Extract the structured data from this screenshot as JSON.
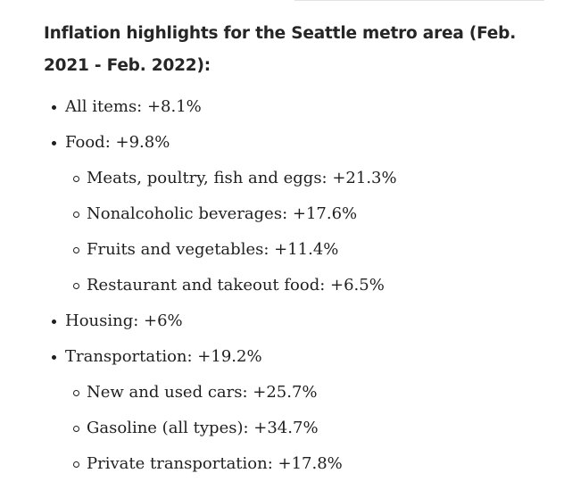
{
  "heading": "Inflation highlights for the Seattle metro area (Feb. 2021 - Feb. 2022):",
  "items": [
    {
      "level": 1,
      "text": "All items: +8.1%"
    },
    {
      "level": 1,
      "text": "Food: +9.8%"
    },
    {
      "level": 2,
      "text": "Meats, poultry, fish and eggs: +21.3%"
    },
    {
      "level": 2,
      "text": "Nonalcoholic beverages: +17.6%"
    },
    {
      "level": 2,
      "text": "Fruits and vegetables: +11.4%"
    },
    {
      "level": 2,
      "text": "Restaurant and takeout food: +6.5%"
    },
    {
      "level": 1,
      "text": "Housing: +6%"
    },
    {
      "level": 1,
      "text": "Transportation: +19.2%"
    },
    {
      "level": 2,
      "text": "New and used cars: +25.7%"
    },
    {
      "level": 2,
      "text": "Gasoline (all types): +34.7%"
    },
    {
      "level": 2,
      "text": "Private transportation: +17.8%"
    }
  ]
}
